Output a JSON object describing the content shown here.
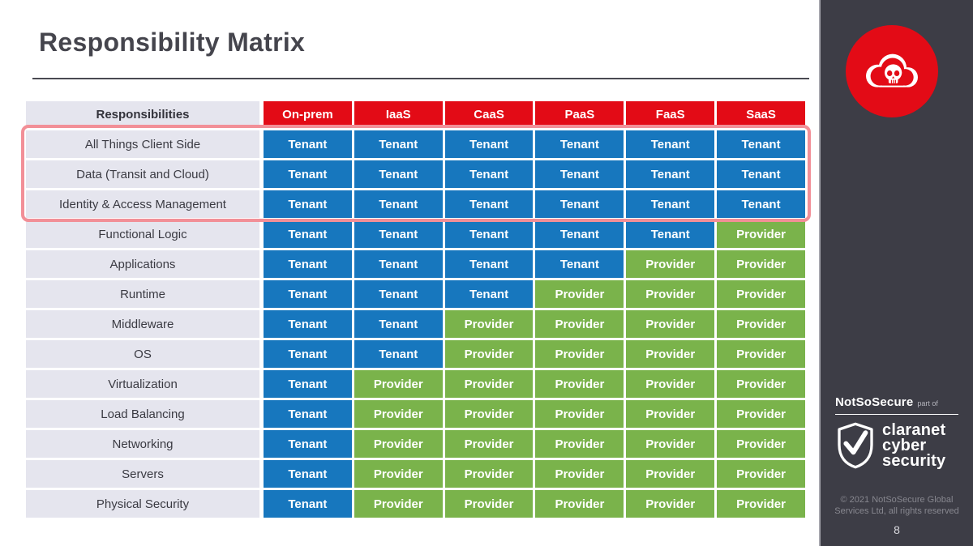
{
  "slide": {
    "title": "Responsibility Matrix",
    "page_number": "8"
  },
  "table": {
    "header_label": "Responsibilities",
    "columns": [
      "On-prem",
      "IaaS",
      "CaaS",
      "PaaS",
      "FaaS",
      "SaaS"
    ],
    "cell_values_legend": [
      "Tenant",
      "Provider"
    ],
    "rows": [
      {
        "label": "All Things Client Side",
        "highlighted": true,
        "cells": [
          "Tenant",
          "Tenant",
          "Tenant",
          "Tenant",
          "Tenant",
          "Tenant"
        ]
      },
      {
        "label": "Data (Transit and Cloud)",
        "highlighted": true,
        "cells": [
          "Tenant",
          "Tenant",
          "Tenant",
          "Tenant",
          "Tenant",
          "Tenant"
        ]
      },
      {
        "label": "Identity & Access Management",
        "highlighted": true,
        "cells": [
          "Tenant",
          "Tenant",
          "Tenant",
          "Tenant",
          "Tenant",
          "Tenant"
        ]
      },
      {
        "label": "Functional Logic",
        "highlighted": false,
        "cells": [
          "Tenant",
          "Tenant",
          "Tenant",
          "Tenant",
          "Tenant",
          "Provider"
        ]
      },
      {
        "label": "Applications",
        "highlighted": false,
        "cells": [
          "Tenant",
          "Tenant",
          "Tenant",
          "Tenant",
          "Provider",
          "Provider"
        ]
      },
      {
        "label": "Runtime",
        "highlighted": false,
        "cells": [
          "Tenant",
          "Tenant",
          "Tenant",
          "Provider",
          "Provider",
          "Provider"
        ]
      },
      {
        "label": "Middleware",
        "highlighted": false,
        "cells": [
          "Tenant",
          "Tenant",
          "Provider",
          "Provider",
          "Provider",
          "Provider"
        ]
      },
      {
        "label": "OS",
        "highlighted": false,
        "cells": [
          "Tenant",
          "Tenant",
          "Provider",
          "Provider",
          "Provider",
          "Provider"
        ]
      },
      {
        "label": "Virtualization",
        "highlighted": false,
        "cells": [
          "Tenant",
          "Provider",
          "Provider",
          "Provider",
          "Provider",
          "Provider"
        ]
      },
      {
        "label": "Load Balancing",
        "highlighted": false,
        "cells": [
          "Tenant",
          "Provider",
          "Provider",
          "Provider",
          "Provider",
          "Provider"
        ]
      },
      {
        "label": "Networking",
        "highlighted": false,
        "cells": [
          "Tenant",
          "Provider",
          "Provider",
          "Provider",
          "Provider",
          "Provider"
        ]
      },
      {
        "label": "Servers",
        "highlighted": false,
        "cells": [
          "Tenant",
          "Provider",
          "Provider",
          "Provider",
          "Provider",
          "Provider"
        ]
      },
      {
        "label": "Physical Security",
        "highlighted": false,
        "cells": [
          "Tenant",
          "Provider",
          "Provider",
          "Provider",
          "Provider",
          "Provider"
        ]
      }
    ]
  },
  "branding": {
    "notsosecure": "NotSoSecure",
    "part_of": "part of",
    "claranet_lines": [
      "claranet",
      "cyber",
      "security"
    ],
    "copyright_lines": [
      "© 2021 NotSoSecure Global",
      "Services Ltd, all rights reserved"
    ],
    "icons": [
      "cloud-skull-icon",
      "shield-check-icon"
    ]
  },
  "colors": {
    "header_red": "#e30b16",
    "tenant_blue": "#1777be",
    "provider_green": "#7ab34b",
    "label_bg": "#e5e5ee",
    "sidebar_bg": "#3d3d46",
    "highlight_border": "#f28f97",
    "logo_red": "#e30b16"
  }
}
